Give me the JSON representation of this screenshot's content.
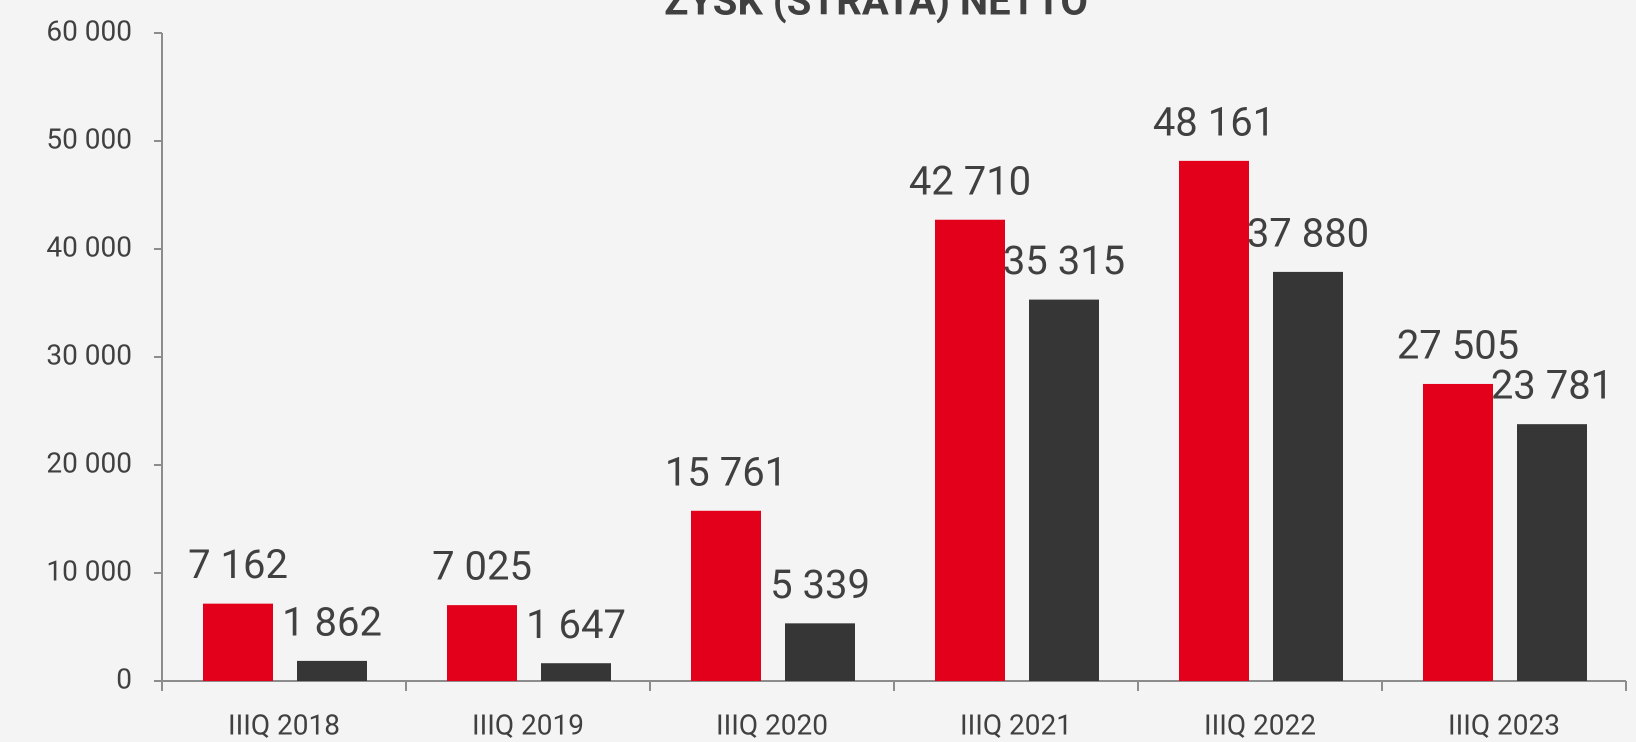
{
  "chart_data": {
    "type": "bar",
    "title": "ZYSK (STRATA) NETTO",
    "categories": [
      "IIIQ 2018",
      "IIIQ 2019",
      "IIIQ 2020",
      "IIIQ 2021",
      "IIIQ 2022",
      "IIIQ 2023"
    ],
    "series": [
      {
        "color": "#e2001a",
        "values": [
          7162,
          7025,
          15761,
          42710,
          48161,
          27505
        ],
        "value_labels": [
          "7 162",
          "7 025",
          "15 761",
          "42 710",
          "48 161",
          "27 505"
        ]
      },
      {
        "color": "#363636",
        "values": [
          1862,
          1647,
          5339,
          35315,
          37880,
          23781
        ],
        "value_labels": [
          "1 862",
          "1 647",
          "5 339",
          "35 315",
          "37 880",
          "23 781"
        ]
      }
    ],
    "ylim": [
      0,
      60000
    ],
    "yticks": [
      {
        "value": 0,
        "label": "0"
      },
      {
        "value": 10000,
        "label": "10 000"
      },
      {
        "value": 20000,
        "label": "20 000"
      },
      {
        "value": 30000,
        "label": "30 000"
      },
      {
        "value": 40000,
        "label": "40 000"
      },
      {
        "value": 50000,
        "label": "50 000"
      },
      {
        "value": 60000,
        "label": "60 000"
      }
    ],
    "grid": false
  }
}
